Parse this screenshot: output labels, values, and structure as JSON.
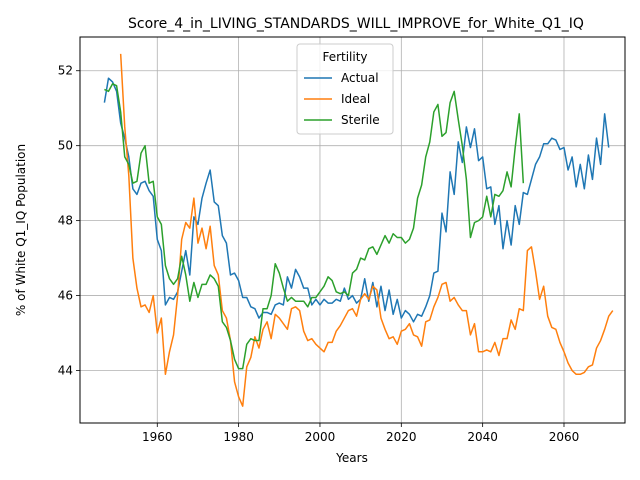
{
  "chart_data": {
    "type": "line",
    "title": "Score_4_in_LIVING_STANDARDS_WILL_IMPROVE_for_White_Q1_IQ",
    "xlabel": "Years",
    "ylabel": "% of White Q1_IQ Population",
    "xlim": [
      1941,
      2075
    ],
    "ylim": [
      42.6,
      52.9
    ],
    "xticks": [
      1960,
      1980,
      2000,
      2020,
      2040,
      2060
    ],
    "yticks": [
      44,
      46,
      48,
      50,
      52
    ],
    "grid": true,
    "legend": {
      "title": "Fertility",
      "position": "top-center"
    },
    "x_start": 1947,
    "series": [
      {
        "name": "Actual",
        "color": "#1f77b4",
        "values": [
          51.15,
          51.8,
          51.7,
          51.45,
          50.6,
          50.2,
          49.7,
          48.85,
          48.7,
          49.0,
          49.05,
          48.8,
          48.65,
          47.5,
          47.2,
          45.75,
          45.95,
          45.9,
          46.1,
          46.65,
          47.2,
          46.55,
          48.1,
          47.9,
          48.6,
          49.0,
          49.35,
          48.5,
          48.4,
          47.6,
          47.4,
          46.55,
          46.6,
          46.4,
          45.95,
          45.95,
          45.7,
          45.65,
          45.4,
          45.55,
          45.55,
          45.5,
          45.75,
          45.8,
          45.75,
          46.5,
          46.2,
          46.7,
          46.5,
          46.2,
          46.2,
          45.75,
          45.9,
          45.75,
          45.9,
          45.8,
          45.8,
          45.9,
          45.85,
          46.2,
          45.9,
          46.0,
          45.8,
          45.9,
          46.45,
          45.85,
          46.35,
          45.7,
          46.25,
          45.6,
          46.15,
          45.5,
          45.9,
          45.4,
          45.6,
          45.5,
          45.3,
          45.5,
          45.45,
          45.7,
          46.0,
          46.6,
          46.65,
          48.2,
          47.7,
          49.3,
          48.7,
          50.1,
          49.55,
          50.5,
          49.95,
          50.45,
          49.6,
          49.7,
          48.85,
          48.9,
          47.9,
          48.4,
          47.25,
          48.0,
          47.35,
          48.4,
          47.9,
          48.75,
          48.7,
          49.1,
          49.5,
          49.7,
          50.05,
          50.05,
          50.2,
          50.15,
          49.9,
          49.95,
          49.35,
          49.7,
          48.9,
          49.5,
          48.85,
          49.75,
          49.1,
          50.2,
          49.5,
          50.85,
          49.95
        ]
      },
      {
        "name": "Ideal",
        "color": "#ff7f0e",
        "values": [
          null,
          null,
          null,
          null,
          52.45,
          50.5,
          49.2,
          47.0,
          46.2,
          45.7,
          45.75,
          45.55,
          46.0,
          45.0,
          45.4,
          43.9,
          44.5,
          44.95,
          46.0,
          47.5,
          47.95,
          47.8,
          48.6,
          47.4,
          47.8,
          47.25,
          47.85,
          46.8,
          46.55,
          45.6,
          45.4,
          44.8,
          43.7,
          43.3,
          43.05,
          44.1,
          44.35,
          44.9,
          44.6,
          45.1,
          45.3,
          44.85,
          45.5,
          45.4,
          45.25,
          45.1,
          45.65,
          45.7,
          45.6,
          45.05,
          44.8,
          44.85,
          44.7,
          44.6,
          44.5,
          44.75,
          44.75,
          45.05,
          45.2,
          45.4,
          45.6,
          45.65,
          45.45,
          45.9,
          46.05,
          45.9,
          46.25,
          46.15,
          45.4,
          45.1,
          44.85,
          44.9,
          44.7,
          45.05,
          45.1,
          45.25,
          44.95,
          44.9,
          44.65,
          45.3,
          45.35,
          45.7,
          45.95,
          46.3,
          46.35,
          45.85,
          45.95,
          45.75,
          45.6,
          45.6,
          44.95,
          45.25,
          44.5,
          44.5,
          44.55,
          44.5,
          44.75,
          44.4,
          44.85,
          44.85,
          45.35,
          45.1,
          45.65,
          45.6,
          47.2,
          47.3,
          46.65,
          45.9,
          46.25,
          45.45,
          45.15,
          45.1,
          44.75,
          44.5,
          44.2,
          44.0,
          43.9,
          43.9,
          43.95,
          44.1,
          44.15,
          44.6,
          44.8,
          45.1,
          45.45,
          45.6
        ]
      },
      {
        "name": "Sterile",
        "color": "#2ca02c",
        "values": [
          51.5,
          51.45,
          51.65,
          51.6,
          50.9,
          49.7,
          49.5,
          49.0,
          49.05,
          49.8,
          50.0,
          49.0,
          49.05,
          48.1,
          47.9,
          46.8,
          46.45,
          46.3,
          46.45,
          47.05,
          46.55,
          45.85,
          46.35,
          45.95,
          46.3,
          46.3,
          46.55,
          46.45,
          46.25,
          45.3,
          45.15,
          44.8,
          44.3,
          44.05,
          44.05,
          44.7,
          44.85,
          44.8,
          44.8,
          45.65,
          45.65,
          46.0,
          46.85,
          46.6,
          46.2,
          45.85,
          45.95,
          45.85,
          45.85,
          45.85,
          45.7,
          45.95,
          45.95,
          46.1,
          46.25,
          46.5,
          46.4,
          46.1,
          46.05,
          46.1,
          46.0,
          46.6,
          46.7,
          47.0,
          46.95,
          47.25,
          47.3,
          47.1,
          47.35,
          47.6,
          47.4,
          47.65,
          47.55,
          47.55,
          47.4,
          47.5,
          47.8,
          48.6,
          48.95,
          49.7,
          50.1,
          50.9,
          51.1,
          50.25,
          50.35,
          51.15,
          51.45,
          50.7,
          50.0,
          49.1,
          47.55,
          47.95,
          48.0,
          48.1,
          48.65,
          48.1,
          48.7,
          48.65,
          48.8,
          49.3,
          48.9,
          49.95,
          50.85,
          49.0
        ]
      }
    ]
  }
}
